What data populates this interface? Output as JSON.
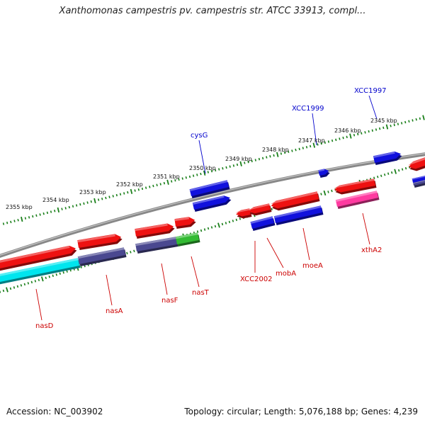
{
  "title": "Xanthomonas campestris pv. campestris str. ATCC 33913, compl...",
  "accession": "Accession: NC_003902",
  "summary": "Topology: circular; Length: 5,076,188 bp; Genes: 4,239",
  "colors": {
    "backbone": "#888888",
    "ticks": "#1a7f1a",
    "forward_label": "#0000cc",
    "reverse_label": "#cc0000",
    "red": "#ee1111",
    "blue": "#1111dd",
    "cyan": "#00e5ee",
    "purple": "#4a4890",
    "green": "#33bb33",
    "magenta": "#ff3aa0"
  },
  "kbp_labels": [
    "2355 kbp",
    "2354 kbp",
    "2353 kbp",
    "2352 kbp",
    "2351 kbp",
    "2350 kbp",
    "2349 kbp",
    "2348 kbp",
    "2347 kbp",
    "2346 kbp",
    "2345 kbp"
  ],
  "gene_labels": [
    {
      "id": "cysG",
      "text": "cysG",
      "strand": "forward"
    },
    {
      "id": "XCC1999",
      "text": "XCC1999",
      "strand": "forward"
    },
    {
      "id": "XCC1997",
      "text": "XCC1997",
      "strand": "forward"
    },
    {
      "id": "nasD",
      "text": "nasD",
      "strand": "reverse"
    },
    {
      "id": "nasA",
      "text": "nasA",
      "strand": "reverse"
    },
    {
      "id": "nasF",
      "text": "nasF",
      "strand": "reverse"
    },
    {
      "id": "nasT",
      "text": "nasT",
      "strand": "reverse"
    },
    {
      "id": "XCC2002",
      "text": "XCC2002",
      "strand": "reverse"
    },
    {
      "id": "mobA",
      "text": "mobA",
      "strand": "reverse"
    },
    {
      "id": "moeA",
      "text": "moeA",
      "strand": "reverse"
    },
    {
      "id": "xthA2",
      "text": "xthA2",
      "strand": "reverse"
    }
  ]
}
